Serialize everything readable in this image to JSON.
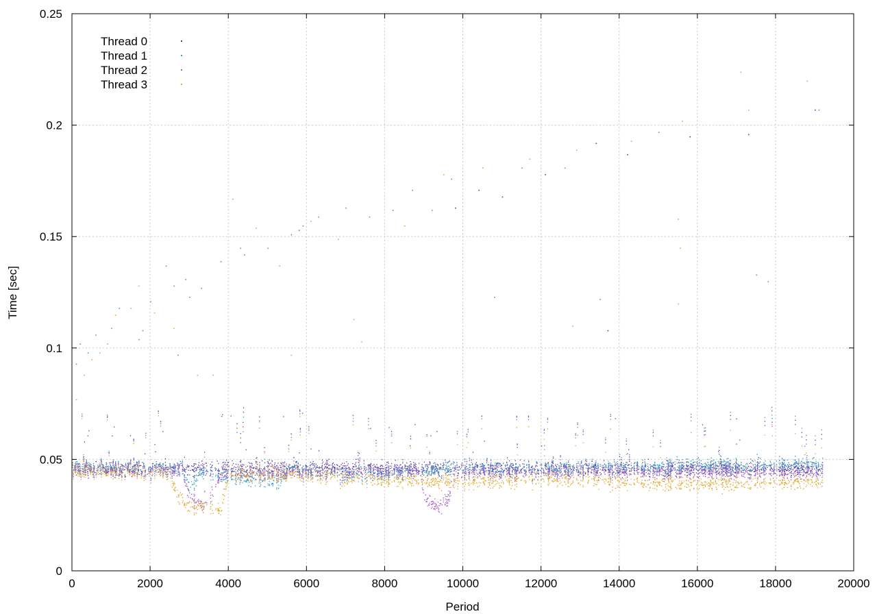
{
  "chart_data": {
    "type": "scatter",
    "title": "",
    "xlabel": "Period",
    "ylabel": "Time [sec]",
    "xlim": [
      0,
      20000
    ],
    "ylim": [
      0,
      0.25
    ],
    "xticks": [
      0,
      2000,
      4000,
      6000,
      8000,
      10000,
      12000,
      14000,
      16000,
      18000,
      20000
    ],
    "yticks": [
      0,
      0.05,
      0.1,
      0.15,
      0.2,
      0.25
    ],
    "xtick_labels": [
      "0",
      "2000",
      "4000",
      "6000",
      "8000",
      "10000",
      "12000",
      "14000",
      "16000",
      "18000",
      "20000"
    ],
    "ytick_labels": [
      "0",
      "0.05",
      "0.1",
      "0.15",
      "0.2",
      "0.25"
    ],
    "grid": true,
    "legend_position": "top-left",
    "x_max_data": 19200,
    "series": [
      {
        "name": "Thread 0",
        "color": "#4b3a9e",
        "baseline": [
          [
            0,
            0.046
          ],
          [
            19200,
            0.046
          ]
        ],
        "outliers": [
          [
            9800,
            0.163
          ],
          [
            11000,
            0.168
          ],
          [
            12100,
            0.178
          ],
          [
            13400,
            0.192
          ],
          [
            14200,
            0.187
          ],
          [
            15800,
            0.195
          ],
          [
            17300,
            0.196
          ],
          [
            19000,
            0.207
          ],
          [
            13700,
            0.108
          ],
          [
            10400,
            0.171
          ]
        ]
      },
      {
        "name": "Thread 1",
        "color": "#3aa0c8",
        "baseline": [
          [
            0,
            0.047
          ],
          [
            2800,
            0.046
          ],
          [
            3000,
            0.038
          ],
          [
            3300,
            0.044
          ],
          [
            5300,
            0.04
          ],
          [
            5500,
            0.046
          ],
          [
            7400,
            0.043
          ],
          [
            9600,
            0.046
          ],
          [
            19200,
            0.048
          ]
        ],
        "outliers": [
          [
            100,
            0.093
          ],
          [
            200,
            0.102
          ],
          [
            400,
            0.098
          ],
          [
            600,
            0.106
          ],
          [
            1000,
            0.109
          ],
          [
            1200,
            0.118
          ],
          [
            1700,
            0.104
          ],
          [
            2000,
            0.121
          ],
          [
            2400,
            0.137
          ],
          [
            2600,
            0.128
          ],
          [
            2900,
            0.131
          ],
          [
            3000,
            0.123
          ],
          [
            3300,
            0.127
          ],
          [
            3800,
            0.139
          ],
          [
            4300,
            0.145
          ],
          [
            5000,
            0.145
          ],
          [
            5600,
            0.151
          ],
          [
            5900,
            0.155
          ],
          [
            6300,
            0.159
          ],
          [
            7000,
            0.163
          ],
          [
            7600,
            0.159
          ],
          [
            8200,
            0.162
          ],
          [
            8700,
            0.171
          ],
          [
            9200,
            0.162
          ],
          [
            10800,
            0.123
          ],
          [
            11500,
            0.181
          ],
          [
            12600,
            0.181
          ],
          [
            13500,
            0.122
          ],
          [
            15000,
            0.197
          ],
          [
            17500,
            0.133
          ],
          [
            17800,
            0.13
          ],
          [
            19100,
            0.207
          ]
        ]
      },
      {
        "name": "Thread 2",
        "color": "#a65ec8",
        "baseline": [
          [
            0,
            0.046
          ],
          [
            2800,
            0.045
          ],
          [
            3000,
            0.034
          ],
          [
            3400,
            0.028
          ],
          [
            3800,
            0.044
          ],
          [
            8900,
            0.045
          ],
          [
            9000,
            0.033
          ],
          [
            9300,
            0.029
          ],
          [
            9600,
            0.031
          ],
          [
            9800,
            0.045
          ],
          [
            19200,
            0.044
          ]
        ],
        "outliers": [
          [
            1800,
            0.108
          ],
          [
            2700,
            0.097
          ],
          [
            4400,
            0.142
          ],
          [
            5800,
            0.153
          ],
          [
            9700,
            0.176
          ]
        ]
      },
      {
        "name": "Thread 3",
        "color": "#e0a82e",
        "baseline": [
          [
            0,
            0.045
          ],
          [
            2500,
            0.044
          ],
          [
            2700,
            0.033
          ],
          [
            2900,
            0.03
          ],
          [
            3200,
            0.029
          ],
          [
            3800,
            0.028
          ],
          [
            4000,
            0.044
          ],
          [
            6000,
            0.043
          ],
          [
            8000,
            0.041
          ],
          [
            10000,
            0.04
          ],
          [
            12000,
            0.042
          ],
          [
            14000,
            0.04
          ],
          [
            16000,
            0.039
          ],
          [
            18000,
            0.04
          ],
          [
            19200,
            0.04
          ]
        ],
        "outliers": [
          [
            100,
            0.077
          ],
          [
            300,
            0.088
          ],
          [
            500,
            0.095
          ],
          [
            700,
            0.098
          ],
          [
            900,
            0.102
          ],
          [
            1100,
            0.115
          ],
          [
            1500,
            0.118
          ],
          [
            1700,
            0.128
          ],
          [
            2100,
            0.116
          ],
          [
            2600,
            0.109
          ],
          [
            3200,
            0.088
          ],
          [
            3600,
            0.088
          ],
          [
            4100,
            0.167
          ],
          [
            4700,
            0.154
          ],
          [
            5300,
            0.137
          ],
          [
            5600,
            0.097
          ],
          [
            6100,
            0.157
          ],
          [
            6800,
            0.149
          ],
          [
            7400,
            0.103
          ],
          [
            7200,
            0.113
          ],
          [
            8500,
            0.155
          ],
          [
            9500,
            0.178
          ],
          [
            10500,
            0.181
          ],
          [
            11700,
            0.185
          ],
          [
            12900,
            0.189
          ],
          [
            14300,
            0.193
          ],
          [
            15600,
            0.202
          ],
          [
            15500,
            0.158
          ],
          [
            15550,
            0.145
          ],
          [
            15500,
            0.12
          ],
          [
            17100,
            0.224
          ],
          [
            18800,
            0.22
          ],
          [
            17300,
            0.207
          ],
          [
            12800,
            0.11
          ]
        ]
      }
    ]
  }
}
